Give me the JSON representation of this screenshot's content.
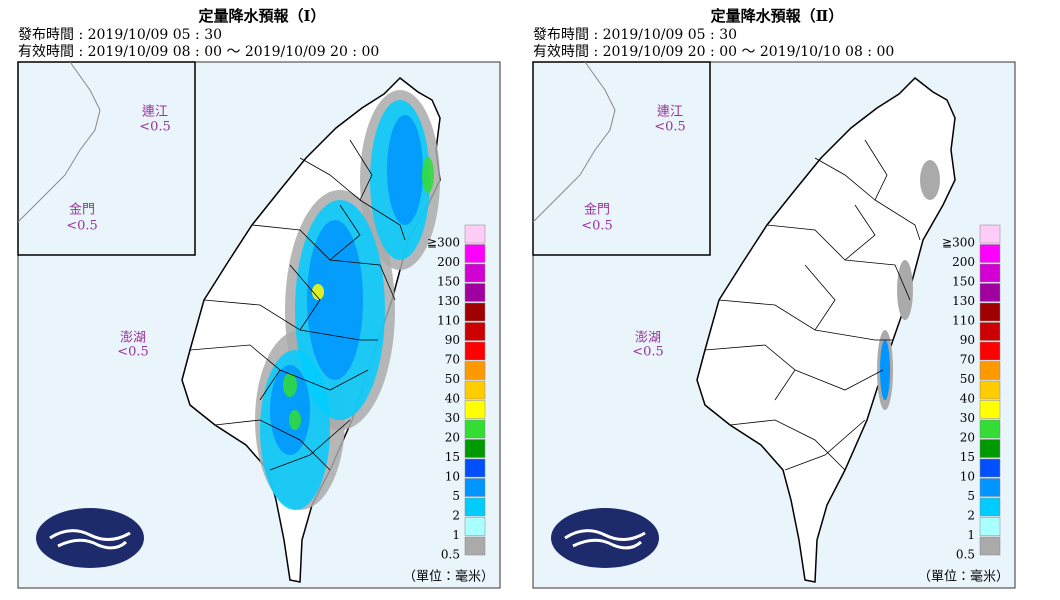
{
  "panels": [
    {
      "title": "定量降水預報（Ⅰ）",
      "issued": "發布時間 : 2019/10/09 05 : 30",
      "valid": "有效時間 : 2019/10/09 08 : 00 ～ 2019/10/09 20 : 00",
      "islands": [
        {
          "name": "連江",
          "value": "<0.5"
        },
        {
          "name": "金門",
          "value": "<0.5"
        },
        {
          "name": "澎湖",
          "value": "<0.5"
        }
      ],
      "unit": "（單位：毫米）"
    },
    {
      "title": "定量降水預報（Ⅱ）",
      "issued": "發布時間 : 2019/10/09 05 : 30",
      "valid": "有效時間 : 2019/10/09 20 : 00 ～ 2019/10/10 08 : 00",
      "islands": [
        {
          "name": "連江",
          "value": "<0.5"
        },
        {
          "name": "金門",
          "value": "<0.5"
        },
        {
          "name": "澎湖",
          "value": "<0.5"
        }
      ],
      "unit": "（單位：毫米）"
    }
  ],
  "legend": [
    {
      "label": "≧300",
      "color": "#ffccf5"
    },
    {
      "label": "200",
      "color": "#ff00ff"
    },
    {
      "label": "150",
      "color": "#d200d2"
    },
    {
      "label": "130",
      "color": "#a000a0"
    },
    {
      "label": "110",
      "color": "#a00000"
    },
    {
      "label": "90",
      "color": "#cc0000"
    },
    {
      "label": "70",
      "color": "#ff0000"
    },
    {
      "label": "50",
      "color": "#ff9900"
    },
    {
      "label": "40",
      "color": "#ffcc00"
    },
    {
      "label": "30",
      "color": "#ffff00"
    },
    {
      "label": "20",
      "color": "#33dd33"
    },
    {
      "label": "15",
      "color": "#009900"
    },
    {
      "label": "10",
      "color": "#0050ff"
    },
    {
      "label": "5",
      "color": "#0095ff"
    },
    {
      "label": "2",
      "color": "#00ccff"
    },
    {
      "label": "1",
      "color": "#aaffff"
    },
    {
      "label": "0.5",
      "color": "#aaaaaa"
    }
  ]
}
